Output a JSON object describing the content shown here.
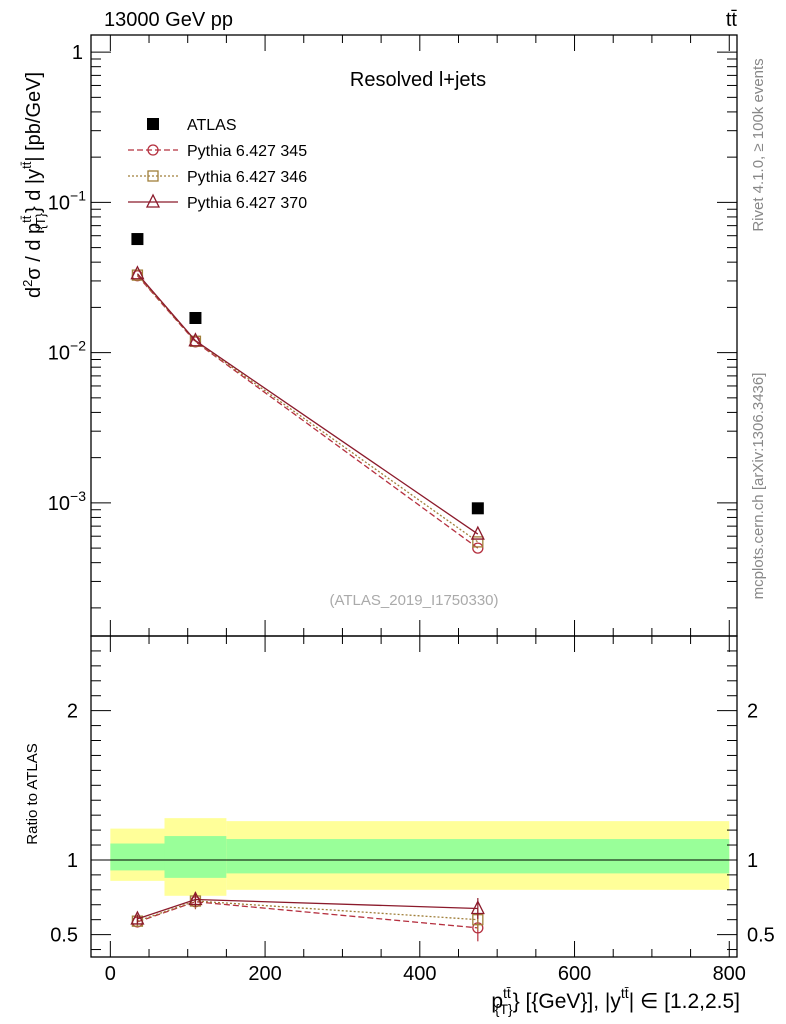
{
  "header": {
    "left": "13000 GeV pp",
    "right": "tt̄"
  },
  "side_labels": {
    "rivet": "Rivet 4.1.0, ≥ 100k events",
    "mcplots": "mcplots.cern.ch [arXiv:1306.3436]"
  },
  "chart_data": [
    {
      "type": "scatter",
      "panel": "main",
      "title": "Resolved l+jets",
      "watermark": "(ATLAS_2019_I1750330)",
      "yscale": "log",
      "ylim": [
        0.00013,
        1.3
      ],
      "xlim": [
        -25,
        810
      ],
      "ylabel": "d²σ / d p_{T}^{tt̄} d |y^{tt̄}| [pb/GeV]",
      "y_ticks": [
        {
          "value": 1,
          "label": "1"
        },
        {
          "value": 0.1,
          "label": "10",
          "exp": "−1"
        },
        {
          "value": 0.01,
          "label": "10",
          "exp": "−2"
        },
        {
          "value": 0.001,
          "label": "10",
          "exp": "−3"
        }
      ],
      "series": [
        {
          "name": "ATLAS",
          "marker": "square-filled",
          "color": "#000000",
          "dash": "none",
          "x": [
            35,
            110,
            475
          ],
          "values": [
            0.057,
            0.017,
            0.00092
          ]
        },
        {
          "name": "Pythia 6.427 345",
          "marker": "circle",
          "color": "#b5303f",
          "dash": "6,3",
          "x": [
            35,
            110,
            475
          ],
          "values": [
            0.0325,
            0.0118,
            0.0005
          ]
        },
        {
          "name": "Pythia 6.427 346",
          "marker": "square-open",
          "color": "#a07f3a",
          "dash": "2,2",
          "x": [
            35,
            110,
            475
          ],
          "values": [
            0.0328,
            0.0119,
            0.00055
          ]
        },
        {
          "name": "Pythia 6.427 370",
          "marker": "triangle",
          "color": "#8b1a2b",
          "dash": "none",
          "x": [
            35,
            110,
            475
          ],
          "values": [
            0.0335,
            0.012,
            0.00062
          ]
        }
      ]
    },
    {
      "type": "scatter",
      "panel": "ratio",
      "ylabel": "Ratio to ATLAS",
      "ylim": [
        0.35,
        2.5
      ],
      "xlim": [
        -25,
        810
      ],
      "xlabel": "p_{T}^{tt̄} [{GeV}], |y^{tt̄}| ∈ [1.2,2.5]",
      "y_ticks": [
        {
          "value": 0.5,
          "label": "0.5"
        },
        {
          "value": 1,
          "label": "1"
        },
        {
          "value": 2,
          "label": "2"
        }
      ],
      "x_ticks": [
        {
          "value": 0,
          "label": "0"
        },
        {
          "value": 200,
          "label": "200"
        },
        {
          "value": 400,
          "label": "400"
        },
        {
          "value": 600,
          "label": "600"
        },
        {
          "value": 800,
          "label": "800"
        }
      ],
      "bands": [
        {
          "x0": 0,
          "x1": 70,
          "yellow": [
            0.86,
            1.21
          ],
          "green": [
            0.93,
            1.11
          ]
        },
        {
          "x0": 70,
          "x1": 150,
          "yellow": [
            0.76,
            1.28
          ],
          "green": [
            0.88,
            1.16
          ]
        },
        {
          "x0": 150,
          "x1": 800,
          "yellow": [
            0.8,
            1.26
          ],
          "green": [
            0.91,
            1.14
          ]
        }
      ],
      "series": [
        {
          "name": "Pythia 6.427 345",
          "marker": "circle",
          "color": "#b5303f",
          "dash": "6,3",
          "x": [
            35,
            110,
            475
          ],
          "values": [
            0.585,
            0.72,
            0.545
          ],
          "err": [
            0.03,
            0.05,
            0.09
          ]
        },
        {
          "name": "Pythia 6.427 346",
          "marker": "square-open",
          "color": "#a07f3a",
          "dash": "2,2",
          "x": [
            35,
            110,
            475
          ],
          "values": [
            0.59,
            0.725,
            0.6
          ],
          "err": [
            0.03,
            0.05,
            0.07
          ]
        },
        {
          "name": "Pythia 6.427 370",
          "marker": "triangle",
          "color": "#8b1a2b",
          "dash": "none",
          "x": [
            35,
            110,
            475
          ],
          "values": [
            0.605,
            0.735,
            0.675
          ],
          "err": [
            0.03,
            0.05,
            0.07
          ]
        }
      ]
    }
  ]
}
